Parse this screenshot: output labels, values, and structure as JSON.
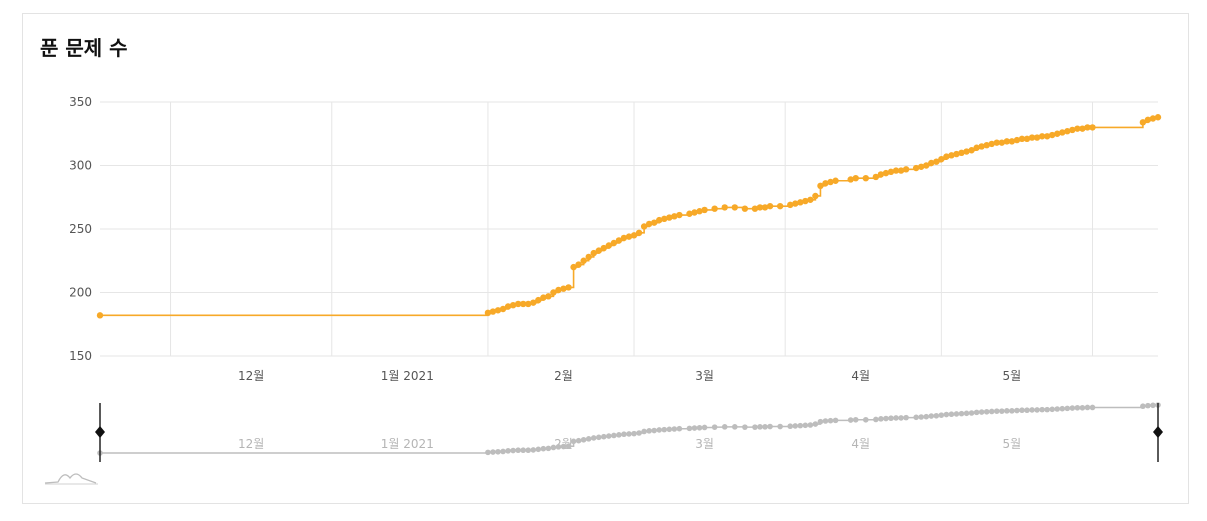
{
  "header": {
    "title": "푼 문제 수"
  },
  "colors": {
    "line": "#f7a928",
    "navigator_line": "#bdbdbd",
    "grid": "#e6e6e6"
  },
  "navigator": {
    "icon": "chart-preview-icon",
    "handles": [
      "range-handle-left",
      "range-handle-right"
    ]
  },
  "chart_data": {
    "type": "line",
    "title": "푼 문제 수",
    "xlabel": "",
    "ylabel": "",
    "x_domain": [
      "2020-11-01",
      "2021-05-30"
    ],
    "ylim": [
      150,
      350
    ],
    "yticks": [
      150,
      200,
      250,
      300,
      350
    ],
    "xticks": [
      {
        "date": "2020-12-01",
        "label": "12월"
      },
      {
        "date": "2021-01-01",
        "label": "1월 2021"
      },
      {
        "date": "2021-02-01",
        "label": "2월"
      },
      {
        "date": "2021-03-01",
        "label": "3월"
      },
      {
        "date": "2021-04-01",
        "label": "4월"
      },
      {
        "date": "2021-05-01",
        "label": "5월"
      }
    ],
    "vertical_gridlines": [
      "2020-11-15",
      "2020-12-17",
      "2021-01-17",
      "2021-02-15",
      "2021-03-17",
      "2021-04-17",
      "2021-05-17"
    ],
    "grid": true,
    "legend": "none",
    "series": [
      {
        "points": [
          [
            "2020-11-01",
            182
          ],
          [
            "2021-01-17",
            184
          ],
          [
            "2021-01-18",
            185
          ],
          [
            "2021-01-19",
            186
          ],
          [
            "2021-01-20",
            187
          ],
          [
            "2021-01-21",
            189
          ],
          [
            "2021-01-22",
            190
          ],
          [
            "2021-01-23",
            191
          ],
          [
            "2021-01-24",
            191
          ],
          [
            "2021-01-25",
            191
          ],
          [
            "2021-01-26",
            192
          ],
          [
            "2021-01-27",
            194
          ],
          [
            "2021-01-28",
            196
          ],
          [
            "2021-01-29",
            197
          ],
          [
            "2021-01-30",
            200
          ],
          [
            "2021-01-31",
            202
          ],
          [
            "2021-02-01",
            203
          ],
          [
            "2021-02-02",
            204
          ],
          [
            "2021-02-03",
            220
          ],
          [
            "2021-02-04",
            222
          ],
          [
            "2021-02-05",
            225
          ],
          [
            "2021-02-06",
            228
          ],
          [
            "2021-02-07",
            231
          ],
          [
            "2021-02-08",
            233
          ],
          [
            "2021-02-09",
            235
          ],
          [
            "2021-02-10",
            237
          ],
          [
            "2021-02-11",
            239
          ],
          [
            "2021-02-12",
            241
          ],
          [
            "2021-02-13",
            243
          ],
          [
            "2021-02-14",
            244
          ],
          [
            "2021-02-15",
            245
          ],
          [
            "2021-02-16",
            247
          ],
          [
            "2021-02-17",
            252
          ],
          [
            "2021-02-18",
            254
          ],
          [
            "2021-02-19",
            255
          ],
          [
            "2021-02-20",
            257
          ],
          [
            "2021-02-21",
            258
          ],
          [
            "2021-02-22",
            259
          ],
          [
            "2021-02-23",
            260
          ],
          [
            "2021-02-24",
            261
          ],
          [
            "2021-02-26",
            262
          ],
          [
            "2021-02-27",
            263
          ],
          [
            "2021-02-28",
            264
          ],
          [
            "2021-03-01",
            265
          ],
          [
            "2021-03-03",
            266
          ],
          [
            "2021-03-05",
            267
          ],
          [
            "2021-03-07",
            267
          ],
          [
            "2021-03-09",
            266
          ],
          [
            "2021-03-11",
            266
          ],
          [
            "2021-03-12",
            267
          ],
          [
            "2021-03-13",
            267
          ],
          [
            "2021-03-14",
            268
          ],
          [
            "2021-03-16",
            268
          ],
          [
            "2021-03-18",
            269
          ],
          [
            "2021-03-19",
            270
          ],
          [
            "2021-03-20",
            271
          ],
          [
            "2021-03-21",
            272
          ],
          [
            "2021-03-22",
            273
          ],
          [
            "2021-03-23",
            276
          ],
          [
            "2021-03-24",
            284
          ],
          [
            "2021-03-25",
            286
          ],
          [
            "2021-03-26",
            287
          ],
          [
            "2021-03-27",
            288
          ],
          [
            "2021-03-30",
            289
          ],
          [
            "2021-03-31",
            290
          ],
          [
            "2021-04-02",
            290
          ],
          [
            "2021-04-04",
            291
          ],
          [
            "2021-04-05",
            293
          ],
          [
            "2021-04-06",
            294
          ],
          [
            "2021-04-07",
            295
          ],
          [
            "2021-04-08",
            296
          ],
          [
            "2021-04-09",
            296
          ],
          [
            "2021-04-10",
            297
          ],
          [
            "2021-04-12",
            298
          ],
          [
            "2021-04-13",
            299
          ],
          [
            "2021-04-14",
            300
          ],
          [
            "2021-04-15",
            302
          ],
          [
            "2021-04-16",
            303
          ],
          [
            "2021-04-17",
            305
          ],
          [
            "2021-04-18",
            307
          ],
          [
            "2021-04-19",
            308
          ],
          [
            "2021-04-20",
            309
          ],
          [
            "2021-04-21",
            310
          ],
          [
            "2021-04-22",
            311
          ],
          [
            "2021-04-23",
            312
          ],
          [
            "2021-04-24",
            314
          ],
          [
            "2021-04-25",
            315
          ],
          [
            "2021-04-26",
            316
          ],
          [
            "2021-04-27",
            317
          ],
          [
            "2021-04-28",
            318
          ],
          [
            "2021-04-29",
            318
          ],
          [
            "2021-04-30",
            319
          ],
          [
            "2021-05-01",
            319
          ],
          [
            "2021-05-02",
            320
          ],
          [
            "2021-05-03",
            321
          ],
          [
            "2021-05-04",
            321
          ],
          [
            "2021-05-05",
            322
          ],
          [
            "2021-05-06",
            322
          ],
          [
            "2021-05-07",
            323
          ],
          [
            "2021-05-08",
            323
          ],
          [
            "2021-05-09",
            324
          ],
          [
            "2021-05-10",
            325
          ],
          [
            "2021-05-11",
            326
          ],
          [
            "2021-05-12",
            327
          ],
          [
            "2021-05-13",
            328
          ],
          [
            "2021-05-14",
            329
          ],
          [
            "2021-05-15",
            329
          ],
          [
            "2021-05-16",
            330
          ],
          [
            "2021-05-17",
            330
          ],
          [
            "2021-05-27",
            334
          ],
          [
            "2021-05-28",
            336
          ],
          [
            "2021-05-29",
            337
          ],
          [
            "2021-05-30",
            338
          ]
        ]
      }
    ]
  }
}
